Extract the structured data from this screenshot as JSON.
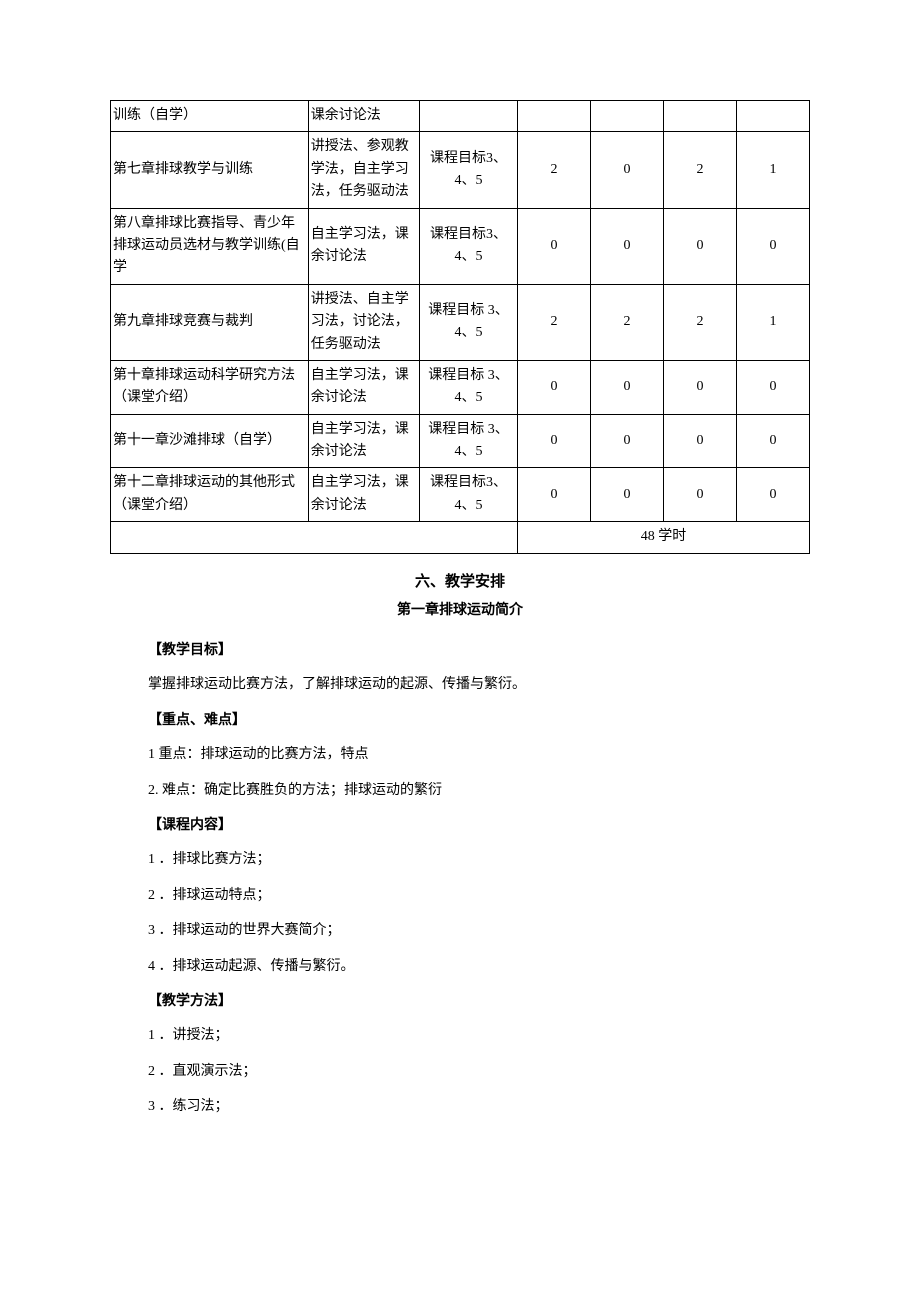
{
  "table": {
    "rows": [
      {
        "chapter": "训练（自学）",
        "method": "课余讨论法",
        "goal": "",
        "n1": "",
        "n2": "",
        "n3": "",
        "n4": ""
      },
      {
        "chapter": "第七章排球教学与训练",
        "method": "讲授法、参观教学法，自主学习法，任务驱动法",
        "goal": "课程目标3、4、5",
        "n1": "2",
        "n2": "0",
        "n3": "2",
        "n4": "1"
      },
      {
        "chapter": "第八章排球比赛指导、青少年排球运动员选材与教学训练(自学",
        "method": "自主学习法，课余讨论法",
        "goal": "课程目标3、4、5",
        "n1": "0",
        "n2": "0",
        "n3": "0",
        "n4": "0"
      },
      {
        "chapter": "第九章排球竞赛与裁判",
        "method": "讲授法、自主学习法，讨论法，任务驱动法",
        "goal": "课程目标 3、4、5",
        "n1": "2",
        "n2": "2",
        "n3": "2",
        "n4": "1"
      },
      {
        "chapter": "第十章排球运动科学研究方法（课堂介绍）",
        "method": "自主学习法，课余讨论法",
        "goal": "课程目标 3、4、5",
        "n1": "0",
        "n2": "0",
        "n3": "0",
        "n4": "0"
      },
      {
        "chapter": "第十一章沙滩排球（自学）",
        "method": "自主学习法，课余讨论法",
        "goal": "课程目标 3、4、5",
        "n1": "0",
        "n2": "0",
        "n3": "0",
        "n4": "0"
      },
      {
        "chapter": "第十二章排球运动的其他形式（课堂介绍）",
        "method": "自主学习法，课余讨论法",
        "goal": "课程目标3、4、5",
        "n1": "0",
        "n2": "0",
        "n3": "0",
        "n4": "0"
      }
    ],
    "total_label": "48 学时"
  },
  "section_heading": "六、教学安排",
  "chapter_heading": "第一章排球运动简介",
  "subs": {
    "goal_h": "【教学目标】",
    "goal_text": "掌握排球运动比赛方法，了解排球运动的起源、传播与繁衍。",
    "keypoint_h": "【重点、难点】",
    "kp1": "1 重点：排球运动的比赛方法，特点",
    "kp2": "2. 难点：确定比赛胜负的方法；排球运动的繁衍",
    "content_h": "【课程内容】",
    "c1": "1 ．排球比赛方法；",
    "c2": "2 ．排球运动特点；",
    "c3": "3 ．排球运动的世界大赛简介；",
    "c4": "4 ．排球运动起源、传播与繁衍。",
    "method_h": "【教学方法】",
    "m1": "1 ．讲授法；",
    "m2": "2 ．直观演示法；",
    "m3": "3 ．练习法；"
  }
}
